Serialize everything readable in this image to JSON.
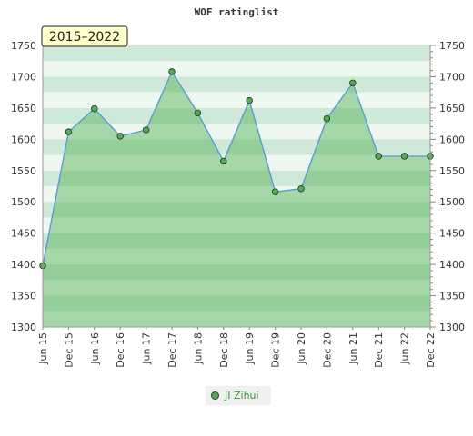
{
  "chart_data": {
    "type": "area",
    "title": "WOF ratinglist",
    "range_label": "2015–2022",
    "categories": [
      "Jun 15",
      "Dec 15",
      "Jun 16",
      "Dec 16",
      "Jun 17",
      "Dec 17",
      "Jun 18",
      "Dec 18",
      "Jun 19",
      "Dec 19",
      "Jun 20",
      "Dec 20",
      "Jun 21",
      "Dec 21",
      "Jun 22",
      "Dec 22"
    ],
    "series": [
      {
        "name": "JI Zihui",
        "values": [
          1398,
          1612,
          1649,
          1605,
          1615,
          1708,
          1642,
          1565,
          1662,
          1516,
          1521,
          1633,
          1690,
          1573,
          1573,
          1573
        ]
      }
    ],
    "ylim": [
      1300,
      1750
    ],
    "yticks": [
      1300,
      1350,
      1400,
      1450,
      1500,
      1550,
      1600,
      1650,
      1700,
      1750
    ],
    "grid": "horizontal bands",
    "legend": "bottom-center",
    "colors": {
      "line": "#5b9bd5",
      "marker": "#55aa55",
      "marker_edge": "#224422",
      "area": "#4caf50",
      "band_dark": "#cfe9d8",
      "band_light": "#eef8f1"
    }
  }
}
